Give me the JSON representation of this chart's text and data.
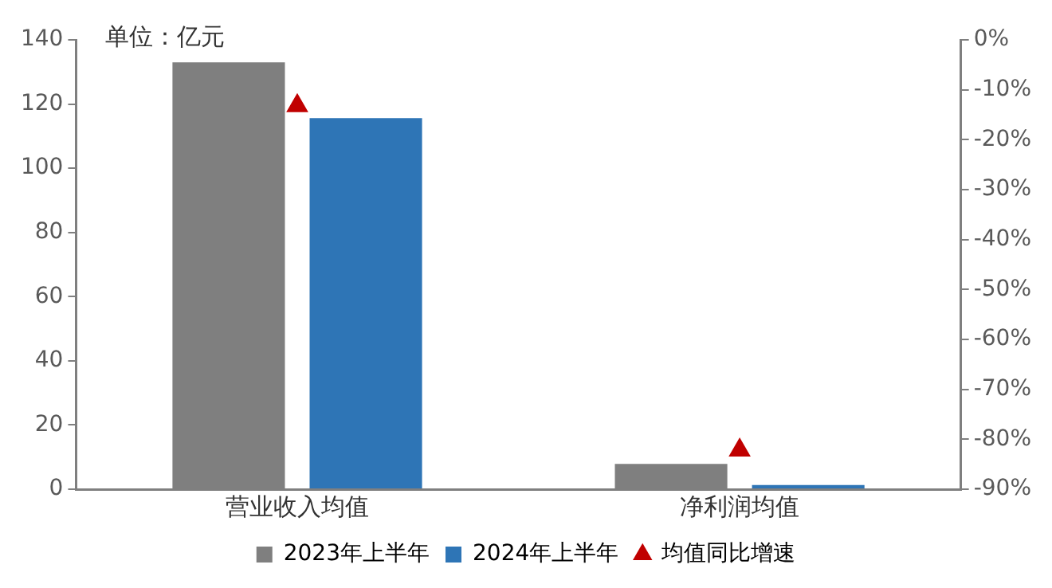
{
  "chart_data": {
    "type": "bar",
    "categories": [
      "营业收入均值",
      "净利润均值"
    ],
    "series": [
      {
        "name": "2023年上半年",
        "color": "#7f7f7f",
        "values": [
          133,
          7.9
        ]
      },
      {
        "name": "2024年上半年",
        "color": "#2e75b6",
        "values": [
          115.6,
          1.3
        ]
      },
      {
        "name": "均值同比增速",
        "type": "scatter",
        "marker": "triangle",
        "axis": "y2",
        "color": "#c00000",
        "values": [
          -13.2,
          -82.2
        ]
      }
    ],
    "ylim": [
      0,
      140
    ],
    "yticks": [
      0,
      20,
      40,
      60,
      80,
      100,
      120,
      140
    ],
    "y2lim": [
      -90,
      0
    ],
    "y2ticks": [
      {
        "value": 0,
        "label": "0%"
      },
      {
        "value": -10,
        "label": "-10%"
      },
      {
        "value": -20,
        "label": "-20%"
      },
      {
        "value": -30,
        "label": "-30%"
      },
      {
        "value": -40,
        "label": "-40%"
      },
      {
        "value": -50,
        "label": "-50%"
      },
      {
        "value": -60,
        "label": "-60%"
      },
      {
        "value": -70,
        "label": "-70%"
      },
      {
        "value": -80,
        "label": "-80%"
      },
      {
        "value": -90,
        "label": "-90%"
      }
    ],
    "annotations": [
      "单位：亿元"
    ],
    "grid": false,
    "legend": "bottom"
  }
}
